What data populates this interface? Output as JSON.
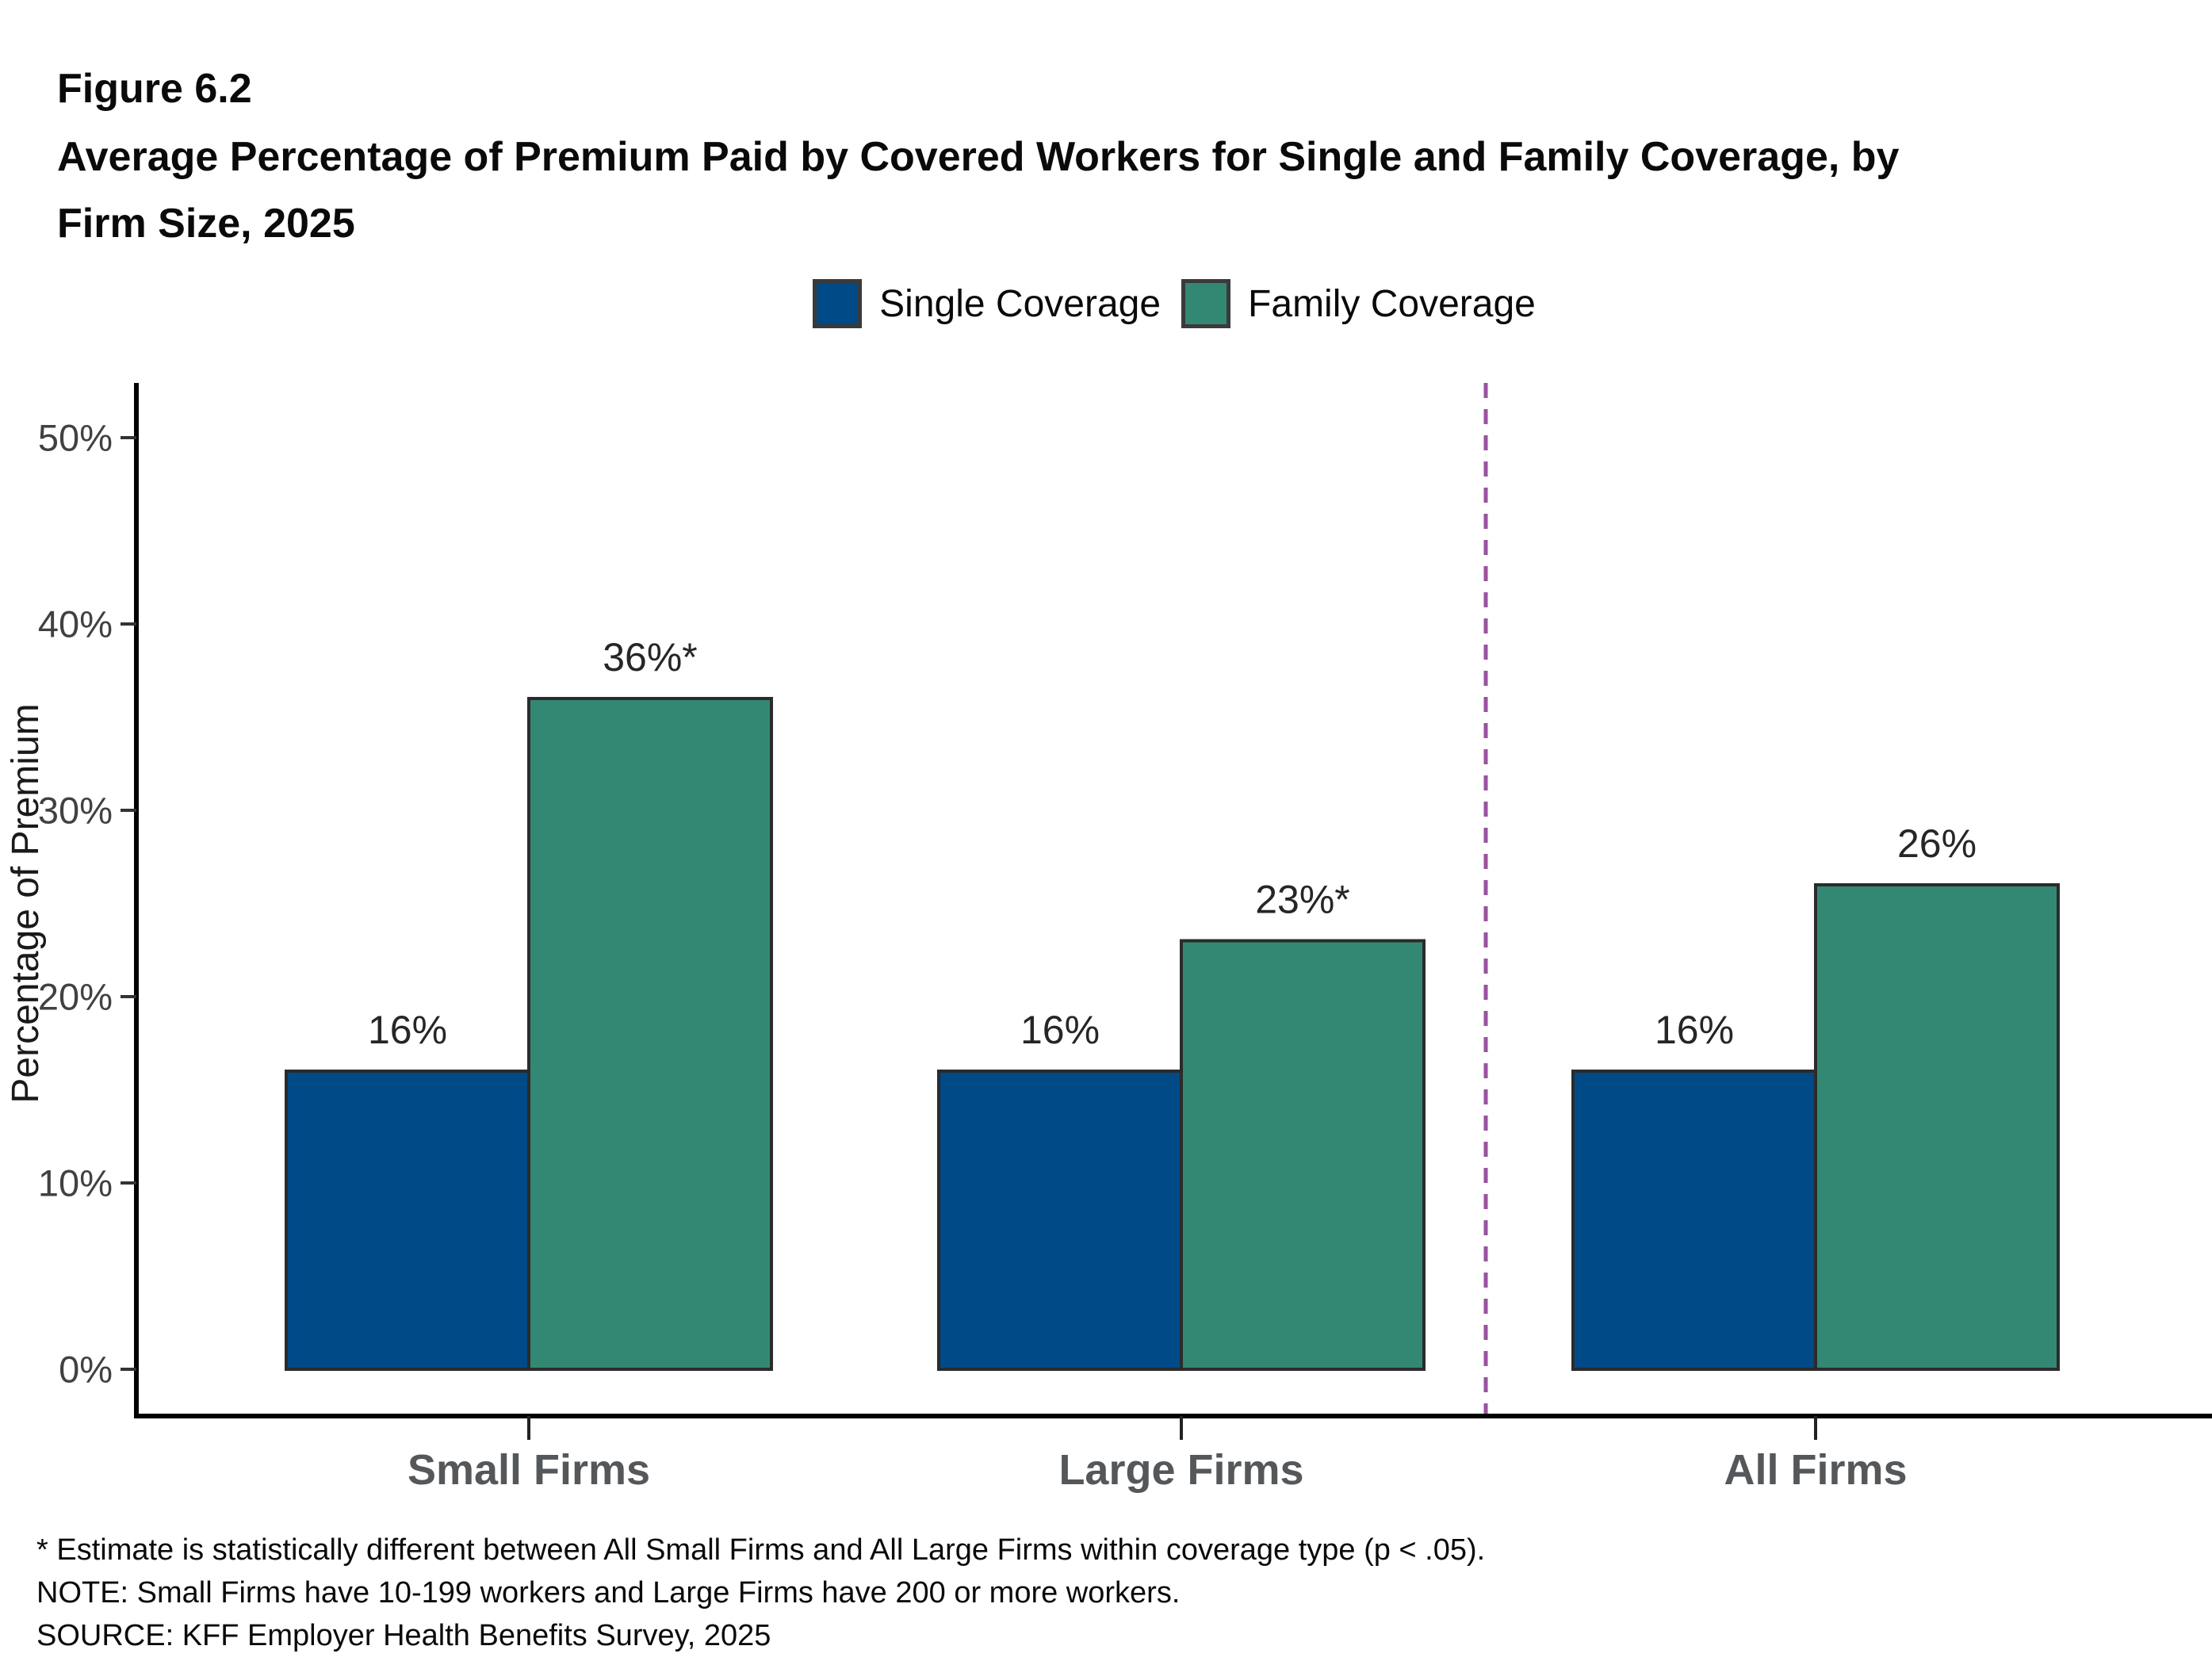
{
  "header": {
    "figure_label": "Figure 6.2",
    "title_lines": [
      "Average Percentage of Premium Paid by Covered Workers for Single and Family Coverage, by",
      "Firm Size, 2025"
    ]
  },
  "legend": [
    {
      "label": "Single Coverage",
      "color": "#004A87"
    },
    {
      "label": "Family Coverage",
      "color": "#338874"
    }
  ],
  "chart_data": {
    "type": "bar",
    "title": "Average Percentage of Premium Paid by Covered Workers for Single and Family Coverage, by Firm Size, 2025",
    "categories": [
      "Small Firms",
      "Large Firms",
      "All Firms"
    ],
    "series": [
      {
        "name": "Single Coverage",
        "color": "#004A87",
        "values": [
          16,
          16,
          16
        ],
        "labels": [
          "16%",
          "16%",
          "16%"
        ]
      },
      {
        "name": "Family Coverage",
        "color": "#338874",
        "values": [
          36,
          23,
          26
        ],
        "labels": [
          "36%*",
          "23%*",
          "26%"
        ]
      }
    ],
    "xlabel": "",
    "ylabel": "Percentage of Premium",
    "ylim": [
      0,
      50
    ],
    "yticks": [
      0,
      10,
      20,
      30,
      40,
      50
    ],
    "ytick_labels": [
      "0%",
      "10%",
      "20%",
      "30%",
      "40%",
      "50%"
    ],
    "grid": false,
    "legend_position": "top",
    "bar_border_color": "#2b2b2b",
    "axis_color": "#000000",
    "tick_label_color": "#414141",
    "category_label_color": "#55585b",
    "value_label_color": "#262626",
    "separator": {
      "after_category": "Large Firms",
      "color": "#9952A1",
      "style": "dashed"
    }
  },
  "footnotes": [
    "* Estimate is statistically different between All Small Firms and All Large Firms within coverage type (p < .05).",
    "NOTE: Small Firms have 10-199 workers and Large Firms have 200 or more workers.",
    "SOURCE: KFF Employer Health Benefits Survey, 2025"
  ]
}
